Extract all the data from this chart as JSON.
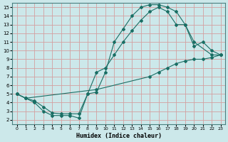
{
  "xlabel": "Humidex (Indice chaleur)",
  "ylabel": "",
  "bg_color": "#cce8ea",
  "grid_color": "#d4a0a0",
  "line_color": "#1a6e64",
  "xlim": [
    -0.5,
    23.5
  ],
  "ylim": [
    1.5,
    15.5
  ],
  "xticks": [
    0,
    1,
    2,
    3,
    4,
    5,
    6,
    7,
    8,
    9,
    10,
    11,
    12,
    13,
    14,
    15,
    16,
    17,
    18,
    19,
    20,
    21,
    22,
    23
  ],
  "yticks": [
    2,
    3,
    4,
    5,
    6,
    7,
    8,
    9,
    10,
    11,
    12,
    13,
    14,
    15
  ],
  "curve1_x": [
    0,
    1,
    2,
    3,
    4,
    5,
    6,
    7,
    8,
    9,
    10,
    11,
    12,
    13,
    14,
    15,
    16,
    17,
    18,
    19,
    20,
    21,
    22,
    23
  ],
  "curve1_y": [
    5.0,
    4.5,
    4.0,
    3.0,
    2.5,
    2.5,
    2.5,
    2.2,
    5.0,
    5.2,
    7.5,
    11.0,
    12.5,
    14.0,
    15.0,
    15.3,
    15.3,
    15.0,
    14.5,
    13.0,
    10.5,
    11.0,
    10.0,
    9.5
  ],
  "curve2_x": [
    0,
    1,
    2,
    3,
    4,
    5,
    6,
    7,
    8,
    9,
    10,
    11,
    12,
    13,
    14,
    15,
    16,
    17,
    18,
    19,
    20,
    22,
    23
  ],
  "curve2_y": [
    5.0,
    4.5,
    4.2,
    3.5,
    2.8,
    2.7,
    2.7,
    2.7,
    5.0,
    7.5,
    8.0,
    9.5,
    11.0,
    12.3,
    13.5,
    14.5,
    15.0,
    14.5,
    13.0,
    13.0,
    11.0,
    9.5,
    9.5
  ],
  "curve3_x": [
    0,
    1,
    9,
    15,
    16,
    17,
    18,
    19,
    20,
    21,
    22,
    23
  ],
  "curve3_y": [
    5.0,
    4.5,
    5.5,
    7.0,
    7.5,
    8.0,
    8.5,
    8.8,
    9.0,
    9.0,
    9.2,
    9.5
  ]
}
